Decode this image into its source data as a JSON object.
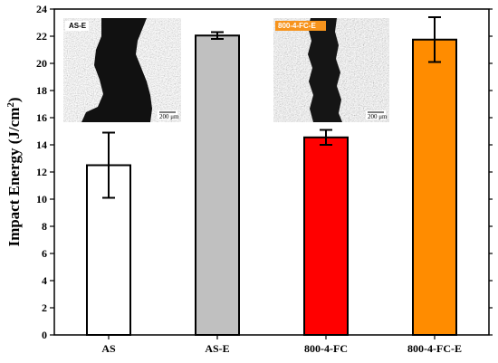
{
  "chart_data": {
    "type": "bar",
    "title": "",
    "ylabel": "Impact Energy (J/cm²)",
    "ylabel_main": "Impact Energy (J/cm",
    "ylabel_sup": "2",
    "ylabel_close": ")",
    "xlabel": "",
    "ylim": [
      0,
      24
    ],
    "yticks": [
      0,
      2,
      4,
      6,
      8,
      10,
      12,
      14,
      16,
      18,
      20,
      22,
      24
    ],
    "categories": [
      "AS",
      "AS-E",
      "800-4-FC",
      "800-4-FC-E"
    ],
    "values": [
      12.5,
      22.05,
      14.55,
      21.75
    ],
    "errors": [
      2.4,
      0.25,
      0.55,
      1.65
    ],
    "colors": [
      "#ffffff",
      "#c0c0c0",
      "#ff0000",
      "#ff8c00"
    ],
    "grid": false
  },
  "insets": [
    {
      "label": "AS-E",
      "label_color": "#000000",
      "label_bg": "#ffffff",
      "scale": "200 μm"
    },
    {
      "label": "800-4-FC-E",
      "label_color": "#ffffff",
      "label_bg": "#f7941d",
      "scale": "200 μm"
    }
  ]
}
